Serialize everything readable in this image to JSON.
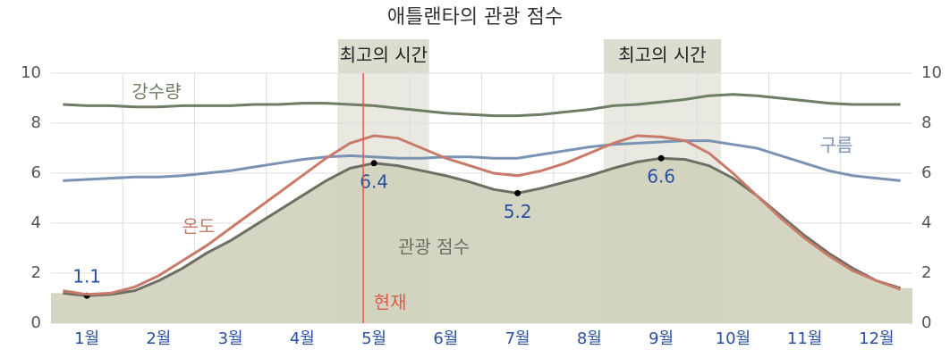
{
  "chart_data": {
    "type": "line",
    "title": "애틀랜타의 관광 점수",
    "categories": [
      null,
      "1월",
      null,
      null,
      "2월",
      null,
      null,
      "3월",
      null,
      null,
      "4월",
      null,
      null,
      "5월",
      null,
      null,
      "6월",
      null,
      null,
      "7월",
      null,
      null,
      "8월",
      null,
      null,
      "9월",
      null,
      null,
      "10월",
      null,
      null,
      "11월",
      null,
      null,
      "12월",
      null
    ],
    "series": [
      {
        "name": "관광 점수",
        "color": "#6e6e62",
        "fill": "#cfd1bd",
        "labeled_points": [
          1,
          13,
          19,
          25
        ],
        "values": [
          1.2,
          1.1,
          1.15,
          1.3,
          1.7,
          2.2,
          2.8,
          3.3,
          3.9,
          4.5,
          5.1,
          5.7,
          6.2,
          6.4,
          6.3,
          6.1,
          5.9,
          5.65,
          5.35,
          5.2,
          5.4,
          5.65,
          5.9,
          6.2,
          6.45,
          6.6,
          6.55,
          6.3,
          5.8,
          5.1,
          4.3,
          3.5,
          2.8,
          2.2,
          1.7,
          1.4
        ]
      },
      {
        "name": "강수량",
        "color": "#6e7d63",
        "values": [
          8.75,
          8.7,
          8.7,
          8.65,
          8.65,
          8.7,
          8.7,
          8.7,
          8.75,
          8.75,
          8.8,
          8.8,
          8.75,
          8.7,
          8.6,
          8.5,
          8.4,
          8.35,
          8.3,
          8.3,
          8.35,
          8.45,
          8.55,
          8.7,
          8.75,
          8.85,
          8.95,
          9.1,
          9.15,
          9.1,
          9.0,
          8.9,
          8.8,
          8.75,
          8.75,
          8.75
        ]
      },
      {
        "name": "구름",
        "color": "#7b93b3",
        "values": [
          5.7,
          5.75,
          5.8,
          5.85,
          5.85,
          5.9,
          6.0,
          6.1,
          6.25,
          6.4,
          6.55,
          6.65,
          6.7,
          6.65,
          6.6,
          6.6,
          6.65,
          6.65,
          6.6,
          6.6,
          6.75,
          6.9,
          7.05,
          7.15,
          7.2,
          7.25,
          7.3,
          7.3,
          7.15,
          7.0,
          6.7,
          6.4,
          6.1,
          5.9,
          5.8,
          5.7
        ]
      },
      {
        "name": "온도",
        "color": "#c87b6a",
        "values": [
          1.3,
          1.15,
          1.2,
          1.45,
          1.9,
          2.5,
          3.1,
          3.8,
          4.5,
          5.2,
          5.9,
          6.6,
          7.2,
          7.5,
          7.4,
          7.0,
          6.6,
          6.3,
          6.0,
          5.9,
          6.1,
          6.4,
          6.8,
          7.2,
          7.5,
          7.45,
          7.3,
          6.8,
          6.0,
          5.1,
          4.2,
          3.4,
          2.7,
          2.1,
          1.7,
          1.35
        ]
      }
    ],
    "highlights": [
      {
        "label": "최고의 시간",
        "from": 11.5,
        "to": 15.3
      },
      {
        "label": "최고의 시간",
        "from": 22.6,
        "to": 27.5
      }
    ],
    "now": {
      "label": "현재",
      "at": 12.55
    },
    "ylim": [
      0,
      10
    ],
    "yticks": [
      0,
      2,
      4,
      6,
      8,
      10
    ],
    "y2lim": [
      0,
      10
    ],
    "y2ticks": [
      0,
      2,
      4,
      6,
      8,
      10
    ],
    "grid": true
  }
}
